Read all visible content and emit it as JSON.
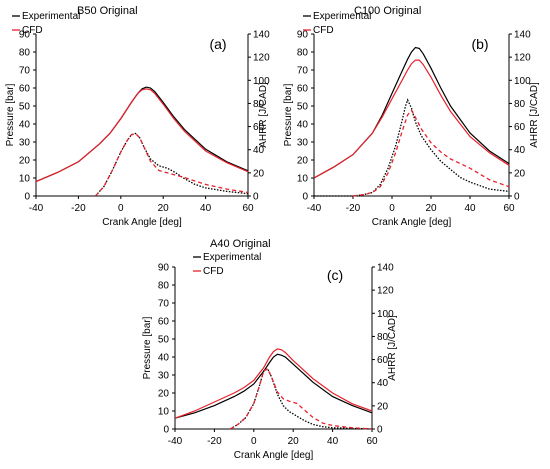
{
  "chart_data": [
    {
      "type": "line",
      "title": "B50 Original",
      "panel_label": "(a)",
      "xlabel": "Crank Angle [deg]",
      "ylabel": "Pressure [bar]",
      "y2label": "AHRR [J/CAD]",
      "xlim": [
        -40,
        60
      ],
      "ylim": [
        0,
        90
      ],
      "y2lim": [
        0,
        140
      ],
      "xticks": [
        "-40",
        "-20",
        "0",
        "20",
        "40",
        "60"
      ],
      "yticks": [
        "0",
        "10",
        "20",
        "30",
        "40",
        "50",
        "60",
        "70",
        "80",
        "90"
      ],
      "y2ticks": [
        "0",
        "20",
        "40",
        "60",
        "80",
        "100",
        "120",
        "140"
      ],
      "legend": [
        "Experimental",
        "CFD"
      ],
      "legend_position": "top-left",
      "colors": {
        "experimental": "#000000",
        "cfd": "#e8212b"
      },
      "series": [
        {
          "name": "Experimental",
          "quantity": "pressure",
          "axis": "left",
          "style": "solid",
          "x": [
            -40,
            -30,
            -20,
            -10,
            -5,
            0,
            5,
            8,
            10,
            12,
            14,
            16,
            20,
            25,
            30,
            40,
            50,
            60
          ],
          "y": [
            8,
            13,
            19,
            29,
            35,
            43,
            52,
            57,
            59.5,
            60.5,
            60,
            58,
            52,
            44,
            37,
            26,
            19,
            14
          ]
        },
        {
          "name": "CFD",
          "quantity": "pressure",
          "axis": "left",
          "style": "solid",
          "x": [
            -40,
            -30,
            -20,
            -10,
            -5,
            0,
            5,
            8,
            10,
            12,
            14,
            16,
            20,
            25,
            30,
            40,
            50,
            60
          ],
          "y": [
            8,
            13,
            19,
            29,
            35,
            43,
            52,
            57,
            59,
            59.5,
            59,
            57,
            51,
            43,
            36,
            25,
            18.5,
            13.5
          ]
        },
        {
          "name": "Experimental",
          "quantity": "AHRR",
          "axis": "right",
          "style": "dotted",
          "x": [
            -12,
            -8,
            -4,
            0,
            3,
            5,
            7,
            9,
            11,
            14,
            18,
            22,
            26,
            30,
            35,
            40,
            50,
            60
          ],
          "y": [
            0,
            8,
            22,
            38,
            48,
            53,
            54,
            50,
            42,
            32,
            26,
            24,
            20,
            15,
            10,
            7,
            4,
            2
          ]
        },
        {
          "name": "CFD",
          "quantity": "AHRR",
          "axis": "right",
          "style": "dashed",
          "x": [
            -12,
            -8,
            -4,
            0,
            3,
            5,
            7,
            9,
            11,
            14,
            18,
            22,
            26,
            30,
            35,
            40,
            50,
            60
          ],
          "y": [
            0,
            8,
            22,
            38,
            48,
            53,
            54,
            50,
            42,
            30,
            22,
            20,
            18,
            16,
            13,
            10,
            6,
            3
          ]
        }
      ]
    },
    {
      "type": "line",
      "title": "C100 Original",
      "panel_label": "(b)",
      "xlabel": "Crank Angle [deg]",
      "ylabel": "Pressure [bar]",
      "y2label": "AHRR [J/CAD]",
      "xlim": [
        -40,
        60
      ],
      "ylim": [
        0,
        90
      ],
      "y2lim": [
        0,
        140
      ],
      "xticks": [
        "-40",
        "-20",
        "0",
        "20",
        "40",
        "60"
      ],
      "yticks": [
        "0",
        "10",
        "20",
        "30",
        "40",
        "50",
        "60",
        "70",
        "80",
        "90"
      ],
      "y2ticks": [
        "0",
        "20",
        "40",
        "60",
        "80",
        "100",
        "120",
        "140"
      ],
      "legend": [
        "Experimental",
        "CFD"
      ],
      "legend_position": "top-left",
      "colors": {
        "experimental": "#000000",
        "cfd": "#e8212b"
      },
      "series": [
        {
          "name": "Experimental",
          "quantity": "pressure",
          "axis": "left",
          "style": "solid",
          "x": [
            -40,
            -30,
            -20,
            -10,
            -5,
            0,
            5,
            8,
            10,
            12,
            14,
            16,
            20,
            25,
            30,
            40,
            50,
            60
          ],
          "y": [
            10,
            16,
            23,
            35,
            45,
            57,
            69,
            76,
            80,
            82.5,
            82,
            79,
            71,
            60,
            50,
            35,
            25,
            18
          ]
        },
        {
          "name": "CFD",
          "quantity": "pressure",
          "axis": "left",
          "style": "solid",
          "x": [
            -40,
            -30,
            -20,
            -10,
            -5,
            0,
            5,
            8,
            10,
            12,
            14,
            16,
            20,
            25,
            30,
            40,
            50,
            60
          ],
          "y": [
            10,
            16,
            23,
            35,
            44,
            54,
            64,
            70,
            73.5,
            75.5,
            75.5,
            73,
            66,
            56,
            47,
            33,
            24,
            17
          ]
        },
        {
          "name": "Experimental",
          "quantity": "AHRR",
          "axis": "right",
          "style": "dotted",
          "x": [
            -40,
            -20,
            -15,
            -10,
            -6,
            -2,
            2,
            5,
            7,
            8,
            10,
            12,
            15,
            20,
            25,
            30,
            35,
            40,
            50,
            60
          ],
          "y": [
            0,
            0,
            1,
            3,
            10,
            24,
            44,
            64,
            78,
            83,
            76,
            64,
            52,
            40,
            30,
            23,
            16,
            12,
            6,
            4
          ]
        },
        {
          "name": "CFD",
          "quantity": "AHRR",
          "axis": "right",
          "style": "dashed",
          "x": [
            -20,
            -15,
            -10,
            -6,
            -2,
            2,
            5,
            8,
            10,
            12,
            15,
            20,
            25,
            30,
            35,
            40,
            50,
            60
          ],
          "y": [
            0,
            1,
            3,
            8,
            20,
            38,
            55,
            70,
            74,
            68,
            58,
            46,
            38,
            32,
            28,
            24,
            14,
            8
          ]
        }
      ]
    },
    {
      "type": "line",
      "title": "A40 Original",
      "panel_label": "(c)",
      "xlabel": "Crank Angle [deg]",
      "ylabel": "Pressure [bar]",
      "y2label": "AHRR [J/CAD]",
      "xlim": [
        -40,
        60
      ],
      "ylim": [
        0,
        90
      ],
      "y2lim": [
        0,
        140
      ],
      "xticks": [
        "-40",
        "-20",
        "0",
        "20",
        "40",
        "60"
      ],
      "yticks": [
        "0",
        "10",
        "20",
        "30",
        "40",
        "50",
        "60",
        "70",
        "80",
        "90"
      ],
      "y2ticks": [
        "0",
        "20",
        "40",
        "60",
        "80",
        "100",
        "120",
        "140"
      ],
      "legend": [
        "Experimental",
        "CFD"
      ],
      "legend_position": "top-left",
      "colors": {
        "experimental": "#000000",
        "cfd": "#e8212b"
      },
      "series": [
        {
          "name": "Experimental",
          "quantity": "pressure",
          "axis": "left",
          "style": "solid",
          "x": [
            -40,
            -30,
            -20,
            -10,
            -5,
            0,
            5,
            8,
            10,
            12,
            14,
            16,
            20,
            25,
            30,
            40,
            50,
            60
          ],
          "y": [
            6,
            9,
            13,
            18,
            21,
            25,
            32,
            37,
            40,
            41.5,
            41,
            40,
            36,
            31,
            26,
            18,
            13,
            9
          ]
        },
        {
          "name": "CFD",
          "quantity": "pressure",
          "axis": "left",
          "style": "solid",
          "x": [
            -40,
            -30,
            -20,
            -10,
            -5,
            0,
            5,
            8,
            10,
            12,
            14,
            16,
            20,
            25,
            30,
            40,
            50,
            60
          ],
          "y": [
            6,
            10,
            15,
            20,
            23,
            27,
            34,
            40,
            43,
            44.5,
            44,
            42.5,
            38,
            33,
            28,
            20,
            14,
            10
          ]
        },
        {
          "name": "Experimental",
          "quantity": "AHRR",
          "axis": "right",
          "style": "dotted",
          "x": [
            -12,
            -8,
            -4,
            0,
            3,
            5,
            7,
            9,
            12,
            15,
            18,
            22,
            26,
            30,
            35,
            40,
            50,
            60
          ],
          "y": [
            0,
            4,
            10,
            22,
            38,
            50,
            52,
            45,
            30,
            20,
            15,
            11,
            7,
            4,
            2,
            1,
            0.5,
            0
          ]
        },
        {
          "name": "CFD",
          "quantity": "AHRR",
          "axis": "right",
          "style": "dashed",
          "x": [
            -12,
            -8,
            -4,
            0,
            3,
            5,
            7,
            9,
            12,
            15,
            18,
            22,
            26,
            30,
            35,
            40,
            50,
            60
          ],
          "y": [
            0,
            4,
            10,
            22,
            38,
            50,
            52,
            45,
            32,
            26,
            24,
            22,
            16,
            10,
            5,
            3,
            1,
            0
          ]
        }
      ]
    }
  ]
}
